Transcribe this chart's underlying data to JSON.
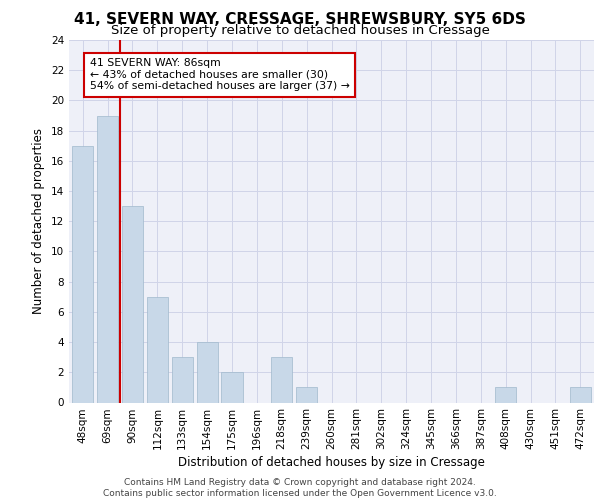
{
  "title": "41, SEVERN WAY, CRESSAGE, SHREWSBURY, SY5 6DS",
  "subtitle": "Size of property relative to detached houses in Cressage",
  "xlabel": "Distribution of detached houses by size in Cressage",
  "ylabel": "Number of detached properties",
  "categories": [
    "48sqm",
    "69sqm",
    "90sqm",
    "112sqm",
    "133sqm",
    "154sqm",
    "175sqm",
    "196sqm",
    "218sqm",
    "239sqm",
    "260sqm",
    "281sqm",
    "302sqm",
    "324sqm",
    "345sqm",
    "366sqm",
    "387sqm",
    "408sqm",
    "430sqm",
    "451sqm",
    "472sqm"
  ],
  "values": [
    17,
    19,
    13,
    7,
    3,
    4,
    2,
    0,
    3,
    1,
    0,
    0,
    0,
    0,
    0,
    0,
    0,
    1,
    0,
    0,
    1
  ],
  "bar_color": "#c8d8e8",
  "bar_edgecolor": "#a0b8cc",
  "grid_color": "#d0d4e8",
  "bg_color": "#eef0f8",
  "marker_line_color": "#cc0000",
  "annotation_text": "41 SEVERN WAY: 86sqm\n← 43% of detached houses are smaller (30)\n54% of semi-detached houses are larger (37) →",
  "annotation_box_color": "#cc0000",
  "ylim": [
    0,
    24
  ],
  "yticks": [
    0,
    2,
    4,
    6,
    8,
    10,
    12,
    14,
    16,
    18,
    20,
    22,
    24
  ],
  "footer": "Contains HM Land Registry data © Crown copyright and database right 2024.\nContains public sector information licensed under the Open Government Licence v3.0.",
  "title_fontsize": 11,
  "subtitle_fontsize": 9.5,
  "axis_label_fontsize": 8.5,
  "tick_fontsize": 7.5,
  "footer_fontsize": 6.5
}
